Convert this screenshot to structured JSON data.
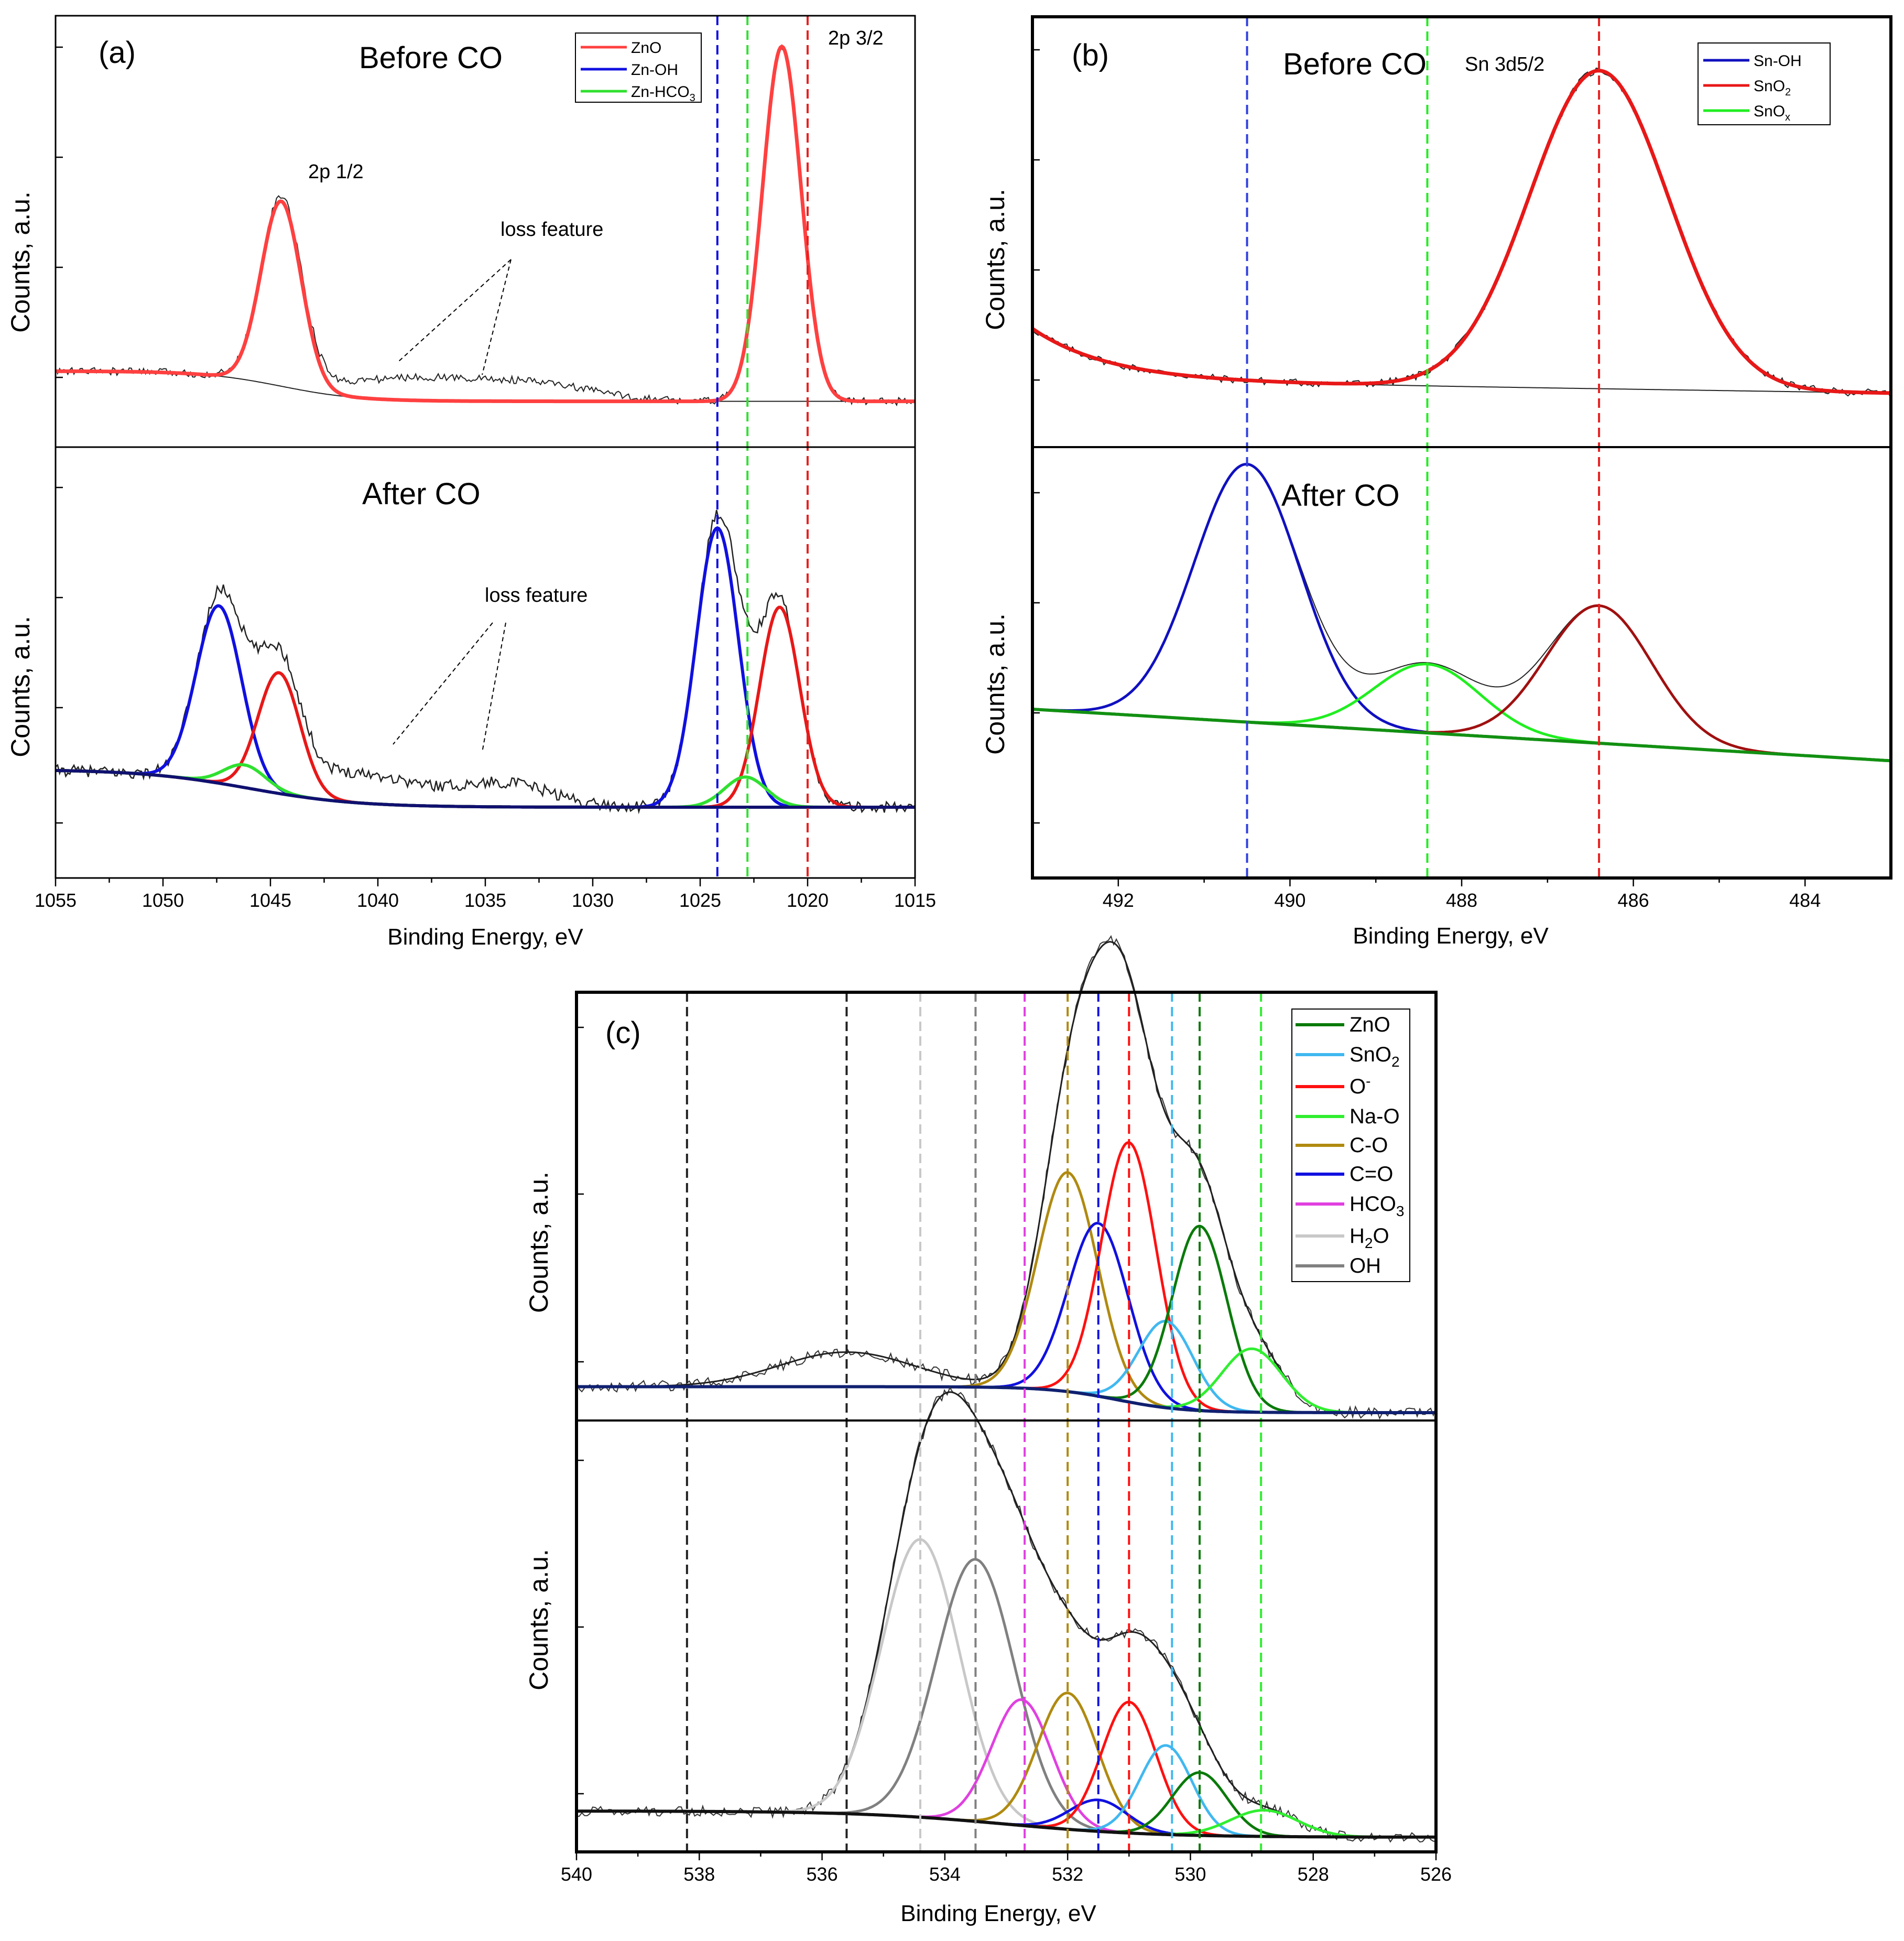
{
  "colors": {
    "ZnO_a": "#ff4040",
    "ZnOH": "#1010e0",
    "ZnHCO3": "#30e030",
    "SnOH": "#1010c0",
    "SnO2_b": "#e81818",
    "SnOx": "#20ee20",
    "c_ZnO": "#0a7a0a",
    "c_SnO2": "#40b8f0",
    "c_Ominus": "#ff1010",
    "c_NaO": "#30ee30",
    "c_CO": "#b08a10",
    "c_C2O": "#1010e0",
    "c_HCO3": "#e040e0",
    "c_H2O": "#c8c8c8",
    "c_OH": "#808080",
    "c_raw": "#404040",
    "baseline_c": "#0a0a60",
    "envelope": "#202020"
  },
  "chart_data": [
    {
      "panel": "(a)",
      "type": "line",
      "xlabel": "Binding Energy, eV",
      "ylabel": "Counts, a.u.",
      "xlim": [
        1055,
        1015
      ],
      "xticks": [
        "1055",
        "1050",
        "1045",
        "1040",
        "1035",
        "1030",
        "1025",
        "1020",
        "1015"
      ],
      "vlines": [
        1024.2,
        1022.8,
        1020.0
      ],
      "legend": [
        "ZnO",
        "Zn-OH",
        "Zn-HCO",
        "3"
      ],
      "annotations": {
        "peak_high": "2p 3/2",
        "peak_low": "2p 1/2",
        "loss_top": "loss feature",
        "loss_bottom": "loss feature"
      },
      "subplots": [
        {
          "title": "Before CO",
          "background": {
            "left": 0.1,
            "right": 0.02,
            "center": 1044.5,
            "width": 1.8
          },
          "components": [
            {
              "name": "ZnO",
              "peaks": [
                {
                  "center": 1021.2,
                  "height": 0.94,
                  "fwhm": 2.1
                },
                {
                  "center": 1044.5,
                  "height": 0.49,
                  "fwhm": 2.2
                }
              ]
            }
          ],
          "loss": [
            {
              "center": 1038.0,
              "height": 0.06,
              "width": 9.0
            },
            {
              "center": 1032.0,
              "height": 0.03,
              "width": 6.0
            }
          ]
        },
        {
          "title": "After CO",
          "background": {
            "left": 0.1,
            "right": 0.0,
            "center": 1046.0,
            "width": 2.5
          },
          "components": [
            {
              "name": "Zn-OH",
              "peaks": [
                {
                  "center": 1024.2,
                  "height": 0.74,
                  "fwhm": 2.3
                },
                {
                  "center": 1047.4,
                  "height": 0.47,
                  "fwhm": 2.5
                }
              ]
            },
            {
              "name": "ZnO",
              "peaks": [
                {
                  "center": 1021.3,
                  "height": 0.53,
                  "fwhm": 2.2
                },
                {
                  "center": 1044.6,
                  "height": 0.32,
                  "fwhm": 2.3
                }
              ]
            },
            {
              "name": "Zn-HCO3",
              "peaks": [
                {
                  "center": 1022.9,
                  "height": 0.08,
                  "fwhm": 2.3
                },
                {
                  "center": 1046.2,
                  "height": 0.06,
                  "fwhm": 2.3
                }
              ]
            }
          ],
          "loss": [
            {
              "center": 1041.0,
              "height": 0.08,
              "width": 7.0
            },
            {
              "center": 1034.0,
              "height": 0.06,
              "width": 5.0
            }
          ]
        }
      ]
    },
    {
      "panel": "(b)",
      "type": "line",
      "xlabel": "Binding Energy, eV",
      "ylabel": "Counts, a.u.",
      "xlim": [
        493,
        483
      ],
      "xticks": [
        "492",
        "490",
        "488",
        "486",
        "484"
      ],
      "vlines": [
        490.5,
        488.4,
        486.4
      ],
      "legend": [
        "Sn-OH",
        "SnO",
        "2",
        "SnO",
        "x"
      ],
      "annotations": {
        "peak": "Sn 3d5/2"
      },
      "subplots": [
        {
          "title": "Before CO",
          "components": [
            {
              "name": "SnO2",
              "center": 486.4,
              "height": 0.74,
              "fwhm": 1.9
            }
          ]
        },
        {
          "title": "After CO",
          "components": [
            {
              "name": "Sn-OH",
              "center": 490.5,
              "height": 0.6,
              "fwhm": 1.45
            },
            {
              "name": "SnOx",
              "center": 488.4,
              "height": 0.16,
              "fwhm": 1.45
            },
            {
              "name": "SnO2",
              "center": 486.4,
              "height": 0.32,
              "fwhm": 1.45
            }
          ]
        }
      ]
    },
    {
      "panel": "(c)",
      "type": "line",
      "xlabel": "Binding Energy, eV",
      "ylabel": "Counts, a.u.",
      "xlim": [
        540,
        526
      ],
      "xticks": [
        "540",
        "538",
        "536",
        "534",
        "532",
        "530",
        "528",
        "526"
      ],
      "legend": [
        "ZnO",
        "SnO",
        "2",
        "O",
        "-",
        "Na-O",
        "C-O",
        "C=O",
        "HCO",
        "3",
        "H",
        "2",
        "O",
        "OH"
      ],
      "vlines": [
        {
          "x": 538.2,
          "key": "black"
        },
        {
          "x": 535.6,
          "key": "black"
        },
        {
          "x": 534.4,
          "key": "c_H2O"
        },
        {
          "x": 533.5,
          "key": "c_OH"
        },
        {
          "x": 532.7,
          "key": "c_HCO3"
        },
        {
          "x": 532.0,
          "key": "c_CO"
        },
        {
          "x": 531.5,
          "key": "c_C2O"
        },
        {
          "x": 531.0,
          "key": "c_Ominus"
        },
        {
          "x": 530.3,
          "key": "c_SnO2"
        },
        {
          "x": 529.85,
          "key": "c_ZnO"
        },
        {
          "x": 528.85,
          "key": "c_NaO"
        }
      ],
      "subplots": [
        {
          "components": [
            {
              "name": "C-O",
              "key": "c_CO",
              "center": 532.0,
              "height": 0.38,
              "fwhm": 1.15
            },
            {
              "name": "C=O",
              "key": "c_C2O",
              "center": 531.5,
              "height": 0.3,
              "fwhm": 1.15
            },
            {
              "name": "O-",
              "key": "c_Ominus",
              "center": 531.0,
              "height": 0.45,
              "fwhm": 1.05
            },
            {
              "name": "SnO2",
              "key": "c_SnO2",
              "center": 530.4,
              "height": 0.15,
              "fwhm": 1.05
            },
            {
              "name": "ZnO",
              "key": "c_ZnO",
              "center": 529.85,
              "height": 0.32,
              "fwhm": 1.05
            },
            {
              "name": "Na-O",
              "key": "c_NaO",
              "center": 529.0,
              "height": 0.11,
              "fwhm": 1.15
            }
          ],
          "hump": {
            "center": 535.6,
            "height": 0.06,
            "fwhm": 2.6
          }
        },
        {
          "components": [
            {
              "name": "H2O",
              "key": "c_H2O",
              "center": 534.4,
              "height": 0.53,
              "fwhm": 1.5
            },
            {
              "name": "OH",
              "key": "c_OH",
              "center": 533.5,
              "height": 0.5,
              "fwhm": 1.5
            },
            {
              "name": "HCO3",
              "key": "c_HCO3",
              "center": 532.75,
              "height": 0.24,
              "fwhm": 1.15
            },
            {
              "name": "C-O",
              "key": "c_CO",
              "center": 532.0,
              "height": 0.26,
              "fwhm": 1.15
            },
            {
              "name": "C=O",
              "key": "c_C2O",
              "center": 531.5,
              "height": 0.06,
              "fwhm": 1.1
            },
            {
              "name": "O-",
              "key": "c_Ominus",
              "center": 531.0,
              "height": 0.25,
              "fwhm": 1.05
            },
            {
              "name": "SnO2",
              "key": "c_SnO2",
              "center": 530.4,
              "height": 0.17,
              "fwhm": 1.0
            },
            {
              "name": "ZnO",
              "key": "c_ZnO",
              "center": 529.85,
              "height": 0.12,
              "fwhm": 1.05
            },
            {
              "name": "Na-O",
              "key": "c_NaO",
              "center": 528.8,
              "height": 0.05,
              "fwhm": 1.3
            }
          ]
        }
      ]
    }
  ]
}
